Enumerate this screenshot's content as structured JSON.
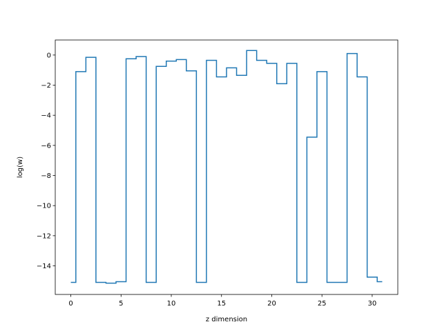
{
  "chart_data": {
    "type": "line",
    "drawstyle": "steps-mid",
    "xlabel": "z dimension",
    "ylabel": "log(w)",
    "xlim": [
      -1.55,
      32.55
    ],
    "ylim": [
      -15.9,
      1.0
    ],
    "xticks": [
      0,
      5,
      10,
      15,
      20,
      25,
      30
    ],
    "yticks": [
      0,
      -2,
      -4,
      -6,
      -8,
      -10,
      -12,
      -14
    ],
    "grid": false,
    "line_color": "#1f77b4",
    "x": [
      0,
      1,
      2,
      3,
      4,
      5,
      6,
      7,
      8,
      9,
      10,
      11,
      12,
      13,
      14,
      15,
      16,
      17,
      18,
      19,
      20,
      21,
      22,
      23,
      24,
      25,
      26,
      27,
      28,
      29,
      30,
      31
    ],
    "y": [
      -15.1,
      -1.1,
      -0.15,
      -15.1,
      -15.15,
      -15.05,
      -0.25,
      -0.1,
      -15.1,
      -0.75,
      -0.4,
      -0.3,
      -1.05,
      -15.1,
      -0.35,
      -1.45,
      -0.85,
      -1.35,
      0.3,
      -0.35,
      -0.55,
      -1.9,
      -0.55,
      -15.1,
      -5.45,
      -1.1,
      -15.1,
      -15.1,
      0.1,
      -1.45,
      -14.75,
      -15.05
    ]
  }
}
